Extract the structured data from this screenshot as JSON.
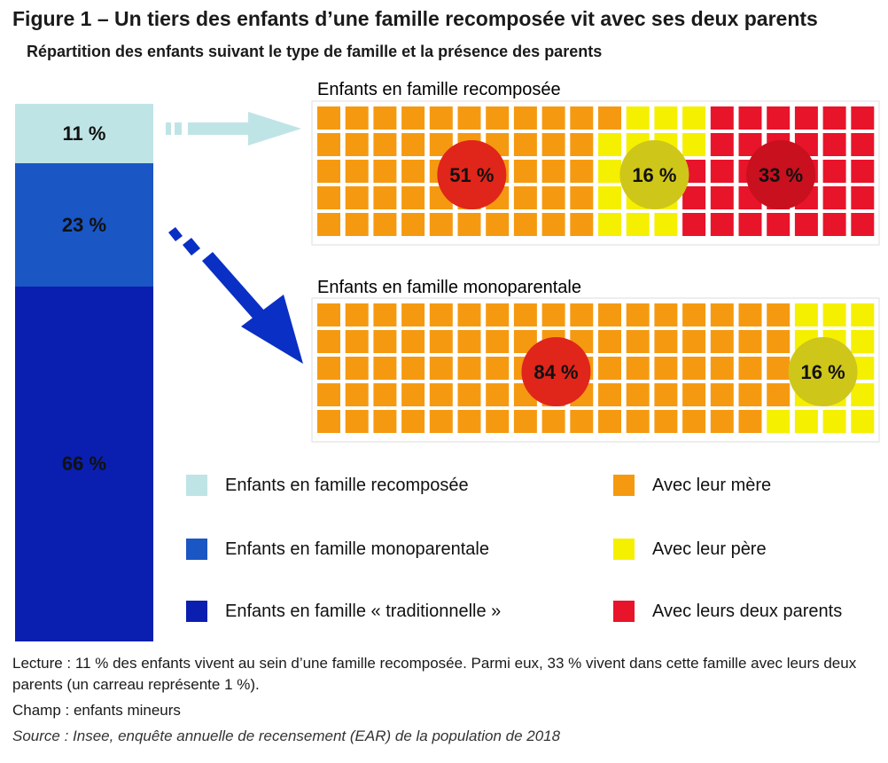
{
  "title": "Figure 1 – Un tiers des enfants d’une famille recomposée vit avec ses deux parents",
  "subtitle": "Répartition des enfants suivant le type de famille et la présence des parents",
  "colors": {
    "recomposee": "#bfe4e6",
    "monoparentale": "#1a56c4",
    "traditionnelle": "#0a1fb0",
    "mere": "#f59a10",
    "pere": "#f5f000",
    "deux_parents": "#e8142a"
  },
  "chart_data": [
    {
      "type": "bar",
      "stacked": true,
      "categories": [
        "Enfants en famille recomposée",
        "Enfants en famille monoparentale",
        "Enfants en famille « traditionnelle »"
      ],
      "values": [
        11,
        23,
        66
      ],
      "labels": [
        "11 %",
        "23 %",
        "66 %"
      ]
    },
    {
      "type": "waffle",
      "title": "Enfants en famille recomposée",
      "series": [
        {
          "name": "Avec leur mère",
          "value": 51,
          "label": "51 %"
        },
        {
          "name": "Avec leur père",
          "value": 16,
          "label": "16 %"
        },
        {
          "name": "Avec leurs deux parents",
          "value": 33,
          "label": "33 %"
        }
      ]
    },
    {
      "type": "waffle",
      "title": "Enfants en famille monoparentale",
      "series": [
        {
          "name": "Avec leur mère",
          "value": 84,
          "label": "84 %"
        },
        {
          "name": "Avec leur père",
          "value": 16,
          "label": "16 %"
        }
      ]
    }
  ],
  "legend": [
    {
      "label": "Enfants en famille recomposée",
      "color": "#bfe4e6"
    },
    {
      "label": "Enfants en famille monoparentale",
      "color": "#1a56c4"
    },
    {
      "label": "Enfants en famille « traditionnelle »",
      "color": "#0a1fb0"
    },
    {
      "label": "Avec leur mère",
      "color": "#f59a10"
    },
    {
      "label": "Avec leur père",
      "color": "#f5f000"
    },
    {
      "label": "Avec leurs deux parents",
      "color": "#e8142a"
    }
  ],
  "notes": {
    "lecture": "Lecture : 11 % des enfants vivent au sein d’une famille recomposée. Parmi eux, 33 % vivent dans cette famille avec leurs deux parents (un carreau représente 1 %).",
    "champ": "Champ : enfants mineurs",
    "source": "Source : Insee, enquête annuelle de recensement (EAR) de la population de 2018"
  }
}
